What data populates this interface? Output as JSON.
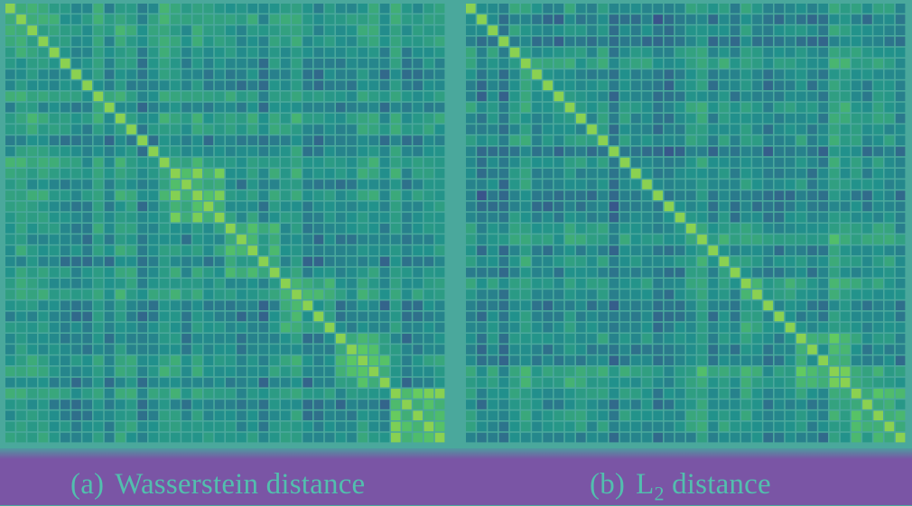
{
  "colors": {
    "background": "#4aa89c",
    "caption_band": "#7a55a5",
    "caption_text": "#52bfae",
    "colormap": "viridis"
  },
  "captions": {
    "a_label": "(a)",
    "a_text": "Wasserstein distance",
    "b_label": "(b)",
    "b_prefix": "L",
    "b_sub": "2",
    "b_suffix": " distance"
  },
  "chart_data": [
    {
      "type": "heatmap",
      "panel": "(a)",
      "caption": "(a) Wasserstein distance",
      "matrix_size": 40,
      "symmetric": true,
      "diagonal": "max",
      "colormap": "viridis",
      "legend": "none",
      "block_structure": [
        0.55,
        0.6,
        0.5,
        0.8,
        0.78,
        0.72,
        0.85,
        0.88
      ],
      "axis_ticks": "none"
    },
    {
      "type": "heatmap",
      "panel": "(b)",
      "caption": "(b) L2 distance",
      "matrix_size": 40,
      "symmetric": true,
      "diagonal": "max",
      "colormap": "viridis",
      "legend": "none",
      "block_structure": [
        0.58,
        0.56,
        0.55,
        0.62,
        0.6,
        0.64,
        0.7,
        0.74
      ],
      "axis_ticks": "none"
    }
  ]
}
